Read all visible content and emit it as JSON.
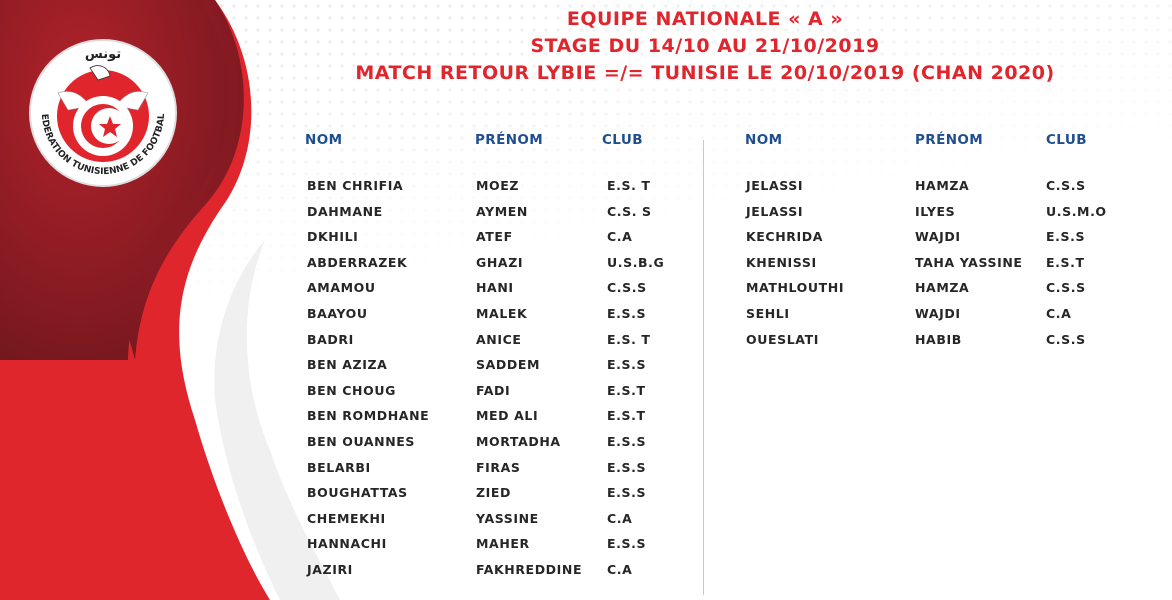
{
  "logo": {
    "arabic": "تونس",
    "text": "FEDERATION TUNISIENNE DE FOOTBALL"
  },
  "header": {
    "line1": "EQUIPE NATIONALE « A »",
    "line2": "STAGE DU 14/10 AU 21/10/2019",
    "line3": "MATCH RETOUR LYBIE =/= TUNISIE LE 20/10/2019 (CHAN 2020)"
  },
  "columns": {
    "nom": "NOM",
    "prenom": "PRÉNOM",
    "club": "CLUB"
  },
  "left_table": [
    [
      "BEN CHRIFIA",
      "MOEZ",
      "E.S. T"
    ],
    [
      "DAHMANE",
      "AYMEN",
      "C.S. S"
    ],
    [
      "DKHILI",
      "ATEF",
      "C.A"
    ],
    [
      "ABDERRAZEK",
      "GHAZI",
      "U.S.B.G"
    ],
    [
      "AMAMOU",
      "HANI",
      "C.S.S"
    ],
    [
      "BAAYOU",
      "MALEK",
      "E.S.S"
    ],
    [
      "BADRI",
      "ANICE",
      "E.S. T"
    ],
    [
      "BEN AZIZA",
      "SADDEM",
      "E.S.S"
    ],
    [
      "BEN CHOUG",
      "FADI",
      "E.S.T"
    ],
    [
      "BEN ROMDHANE",
      "MED ALI",
      "E.S.T"
    ],
    [
      "BEN OUANNES",
      "MORTADHA",
      "E.S.S"
    ],
    [
      "BELARBI",
      "FIRAS",
      "E.S.S"
    ],
    [
      "BOUGHATTAS",
      "ZIED",
      "E.S.S"
    ],
    [
      "CHEMEKHI",
      "YASSINE",
      "C.A"
    ],
    [
      "HANNACHI",
      "MAHER",
      "E.S.S"
    ],
    [
      "JAZIRI",
      "FAKHREDDINE",
      "C.A"
    ]
  ],
  "right_table": [
    [
      "JELASSI",
      "HAMZA",
      "C.S.S"
    ],
    [
      "JELASSI",
      "ILYES",
      "U.S.M.O"
    ],
    [
      "KECHRIDA",
      "WAJDI",
      "E.S.S"
    ],
    [
      "KHENISSI",
      "TAHA YASSINE",
      "E.S.T"
    ],
    [
      "MATHLOUTHI",
      "HAMZA",
      "C.S.S"
    ],
    [
      "SEHLI",
      "WAJDI",
      "C.A"
    ],
    [
      "OUESLATI",
      "HABIB",
      "C.S.S"
    ]
  ],
  "colors": {
    "title": "#e1252d",
    "header": "#1f4e8e",
    "text": "#262626",
    "swoosh_dark": "#7e1a22",
    "swoosh_red": "#d9242b"
  }
}
